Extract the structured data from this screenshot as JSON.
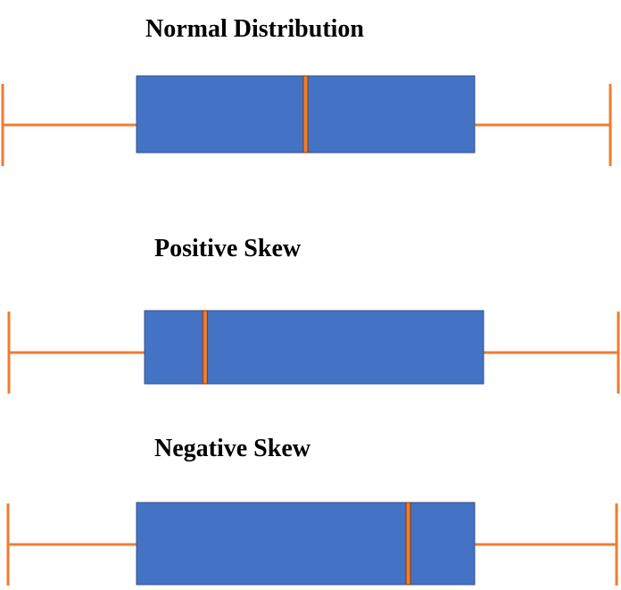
{
  "colors": {
    "box_fill": "#4472C4",
    "box_stroke": "#2F528F",
    "whisker": "#ED7D31",
    "median": "#ED7D31",
    "median_stroke": "#843C0C",
    "background": "#FFFFFF"
  },
  "boxplots": [
    {
      "id": "normal",
      "title": "Normal Distribution",
      "min": 0.0,
      "q1": 0.22,
      "median": 0.5,
      "q3": 0.78,
      "max": 1.0
    },
    {
      "id": "positive",
      "title": "Positive Skew",
      "min": 0.0,
      "q1": 0.22,
      "median": 0.32,
      "q3": 0.78,
      "max": 1.0
    },
    {
      "id": "negative",
      "title": "Negative Skew",
      "min": 0.0,
      "q1": 0.22,
      "median": 0.67,
      "q3": 0.78,
      "max": 1.0
    }
  ]
}
